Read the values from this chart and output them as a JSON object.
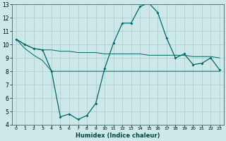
{
  "xlabel": "Humidex (Indice chaleur)",
  "bg_color": "#cce8e8",
  "grid_color": "#aacccc",
  "line_color": "#006868",
  "xlim": [
    -0.5,
    23.5
  ],
  "ylim": [
    4,
    13
  ],
  "xticks": [
    0,
    1,
    2,
    3,
    4,
    5,
    6,
    7,
    8,
    9,
    10,
    11,
    12,
    13,
    14,
    15,
    16,
    17,
    18,
    19,
    20,
    21,
    22,
    23
  ],
  "yticks": [
    4,
    5,
    6,
    7,
    8,
    9,
    10,
    11,
    12,
    13
  ],
  "series1_x": [
    0,
    1,
    2,
    3,
    4,
    5,
    6,
    7,
    8,
    9,
    10,
    11,
    12,
    13,
    14,
    15,
    16,
    17,
    18,
    19,
    20,
    21,
    22,
    23
  ],
  "series1_y": [
    10.4,
    10.0,
    9.7,
    9.6,
    8.0,
    4.6,
    4.8,
    4.4,
    4.7,
    5.6,
    8.2,
    10.1,
    11.6,
    11.6,
    12.85,
    13.1,
    12.4,
    10.5,
    9.0,
    9.3,
    8.5,
    8.6,
    9.0,
    8.1
  ],
  "series2_x": [
    0,
    1,
    2,
    3,
    4,
    5,
    6,
    7,
    8,
    9,
    10,
    11,
    12,
    13,
    14,
    15,
    16,
    17,
    18,
    19,
    20,
    21,
    22,
    23
  ],
  "series2_y": [
    10.4,
    10.0,
    9.7,
    9.6,
    9.6,
    9.5,
    9.5,
    9.4,
    9.4,
    9.4,
    9.3,
    9.3,
    9.3,
    9.3,
    9.3,
    9.2,
    9.2,
    9.2,
    9.2,
    9.2,
    9.1,
    9.1,
    9.1,
    9.0
  ],
  "series3_x": [
    0,
    1,
    2,
    3,
    4,
    5,
    6,
    7,
    8,
    9,
    10,
    11,
    12,
    13,
    14,
    15,
    16,
    17,
    18,
    19,
    20,
    21,
    22,
    23
  ],
  "series3_y": [
    10.4,
    9.7,
    9.2,
    8.8,
    8.0,
    8.0,
    8.0,
    8.0,
    8.0,
    8.0,
    8.0,
    8.0,
    8.0,
    8.0,
    8.0,
    8.0,
    8.0,
    8.0,
    8.0,
    8.0,
    8.0,
    8.0,
    8.0,
    8.0
  ]
}
